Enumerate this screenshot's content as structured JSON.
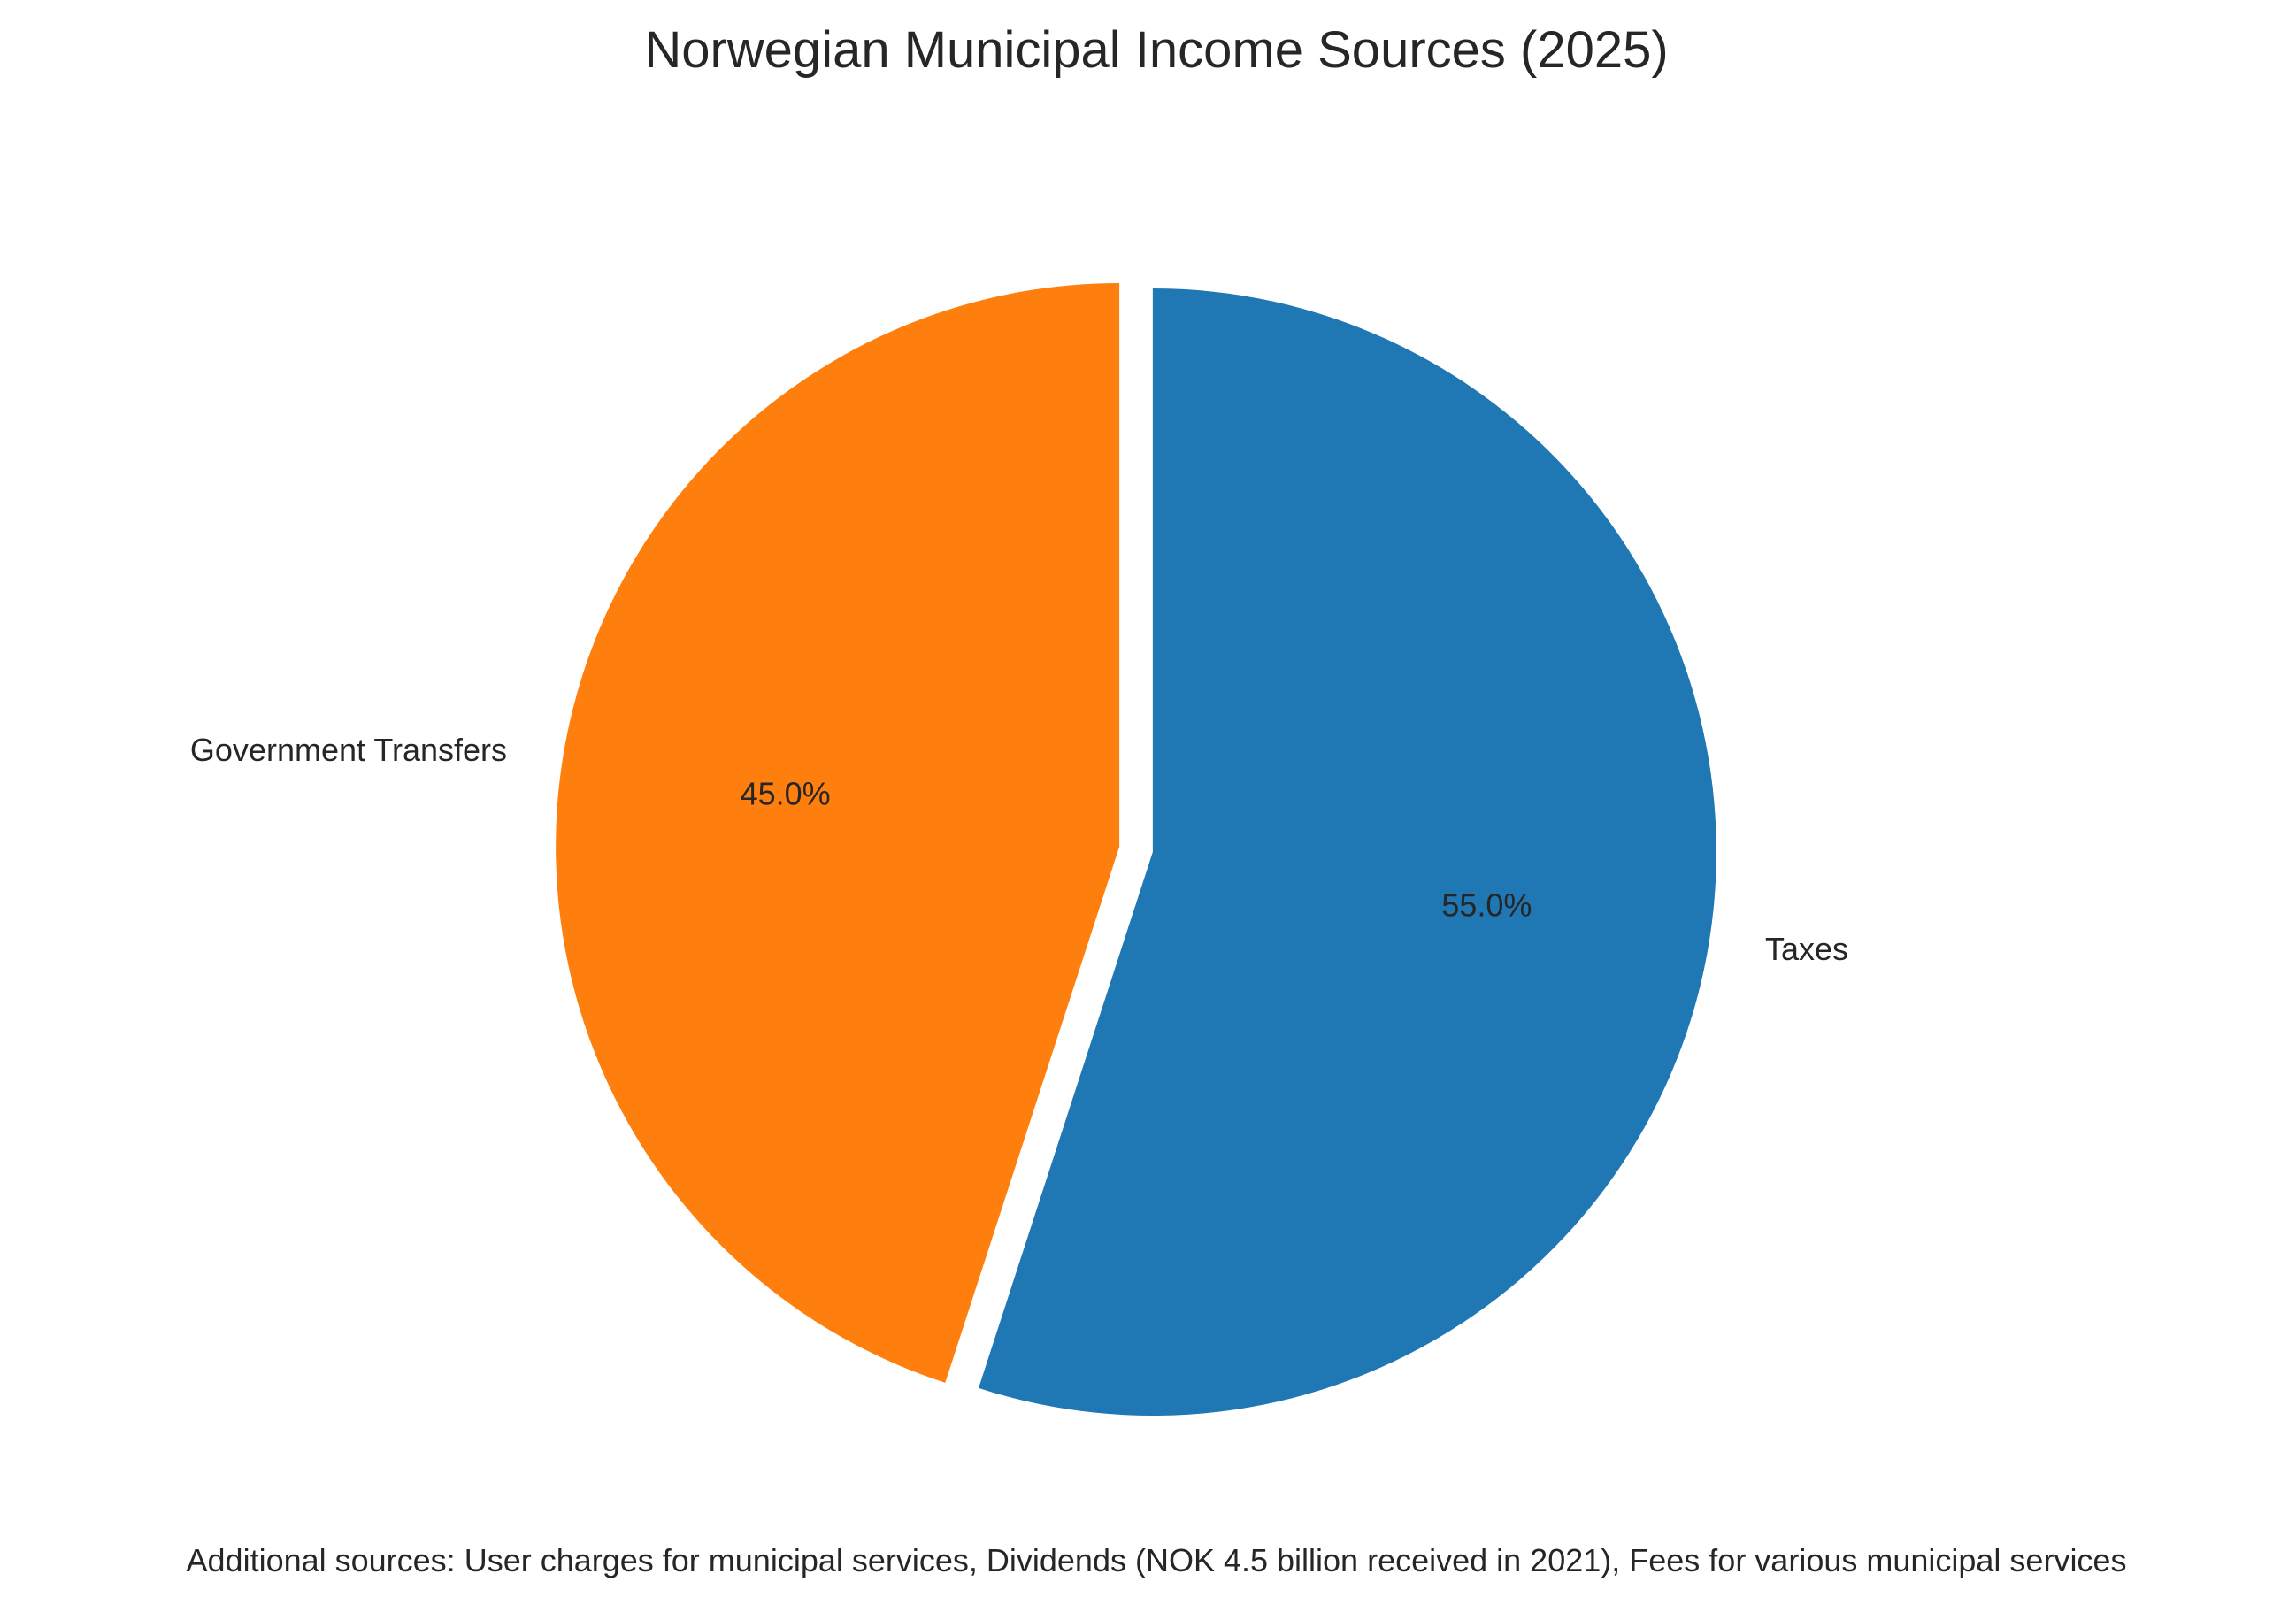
{
  "chart_data": {
    "type": "pie",
    "title": "Norwegian Municipal Income Sources (2025)",
    "slices": [
      {
        "label": "Taxes",
        "value": 55.0,
        "pct_label": "55.0%",
        "color": "#1f77b4"
      },
      {
        "label": "Government Transfers",
        "value": 45.0,
        "pct_label": "45.0%",
        "color": "#ff7f0e"
      }
    ],
    "start_angle": "90 degrees (top), clockwise",
    "exploded": "all slices slightly separated",
    "annotation": "Additional sources: User charges for municipal services, Dividends (NOK 4.5 billion received in 2021), Fees for various municipal services"
  }
}
